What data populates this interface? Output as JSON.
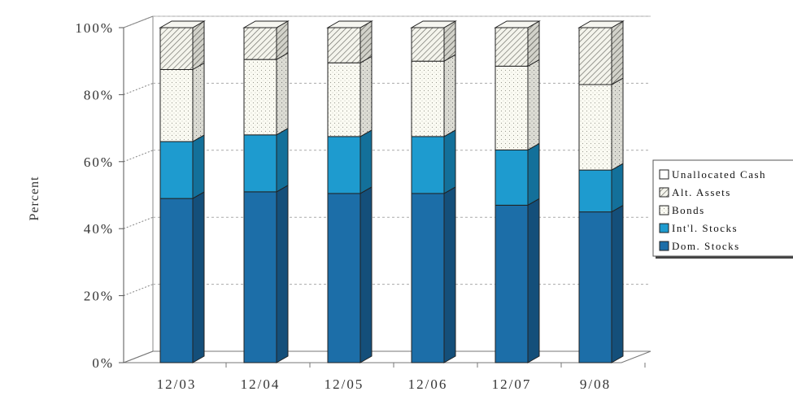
{
  "chart_data": {
    "type": "bar",
    "stacked": true,
    "three_d": true,
    "title": "",
    "xlabel": "",
    "ylabel": "Percent",
    "ylim": [
      0,
      100
    ],
    "y_tick_labels": [
      "0%",
      "20%",
      "40%",
      "60%",
      "80%",
      "100%"
    ],
    "categories": [
      "12/03",
      "12/04",
      "12/05",
      "12/06",
      "12/07",
      "9/08"
    ],
    "series": [
      {
        "name": "Dom. Stocks",
        "values": [
          49,
          51,
          50.5,
          50.5,
          47,
          45
        ]
      },
      {
        "name": "Int'l. Stocks",
        "values": [
          17,
          17,
          17,
          17,
          16.5,
          12.5
        ]
      },
      {
        "name": "Bonds",
        "values": [
          21.5,
          22.5,
          22,
          22.5,
          25,
          25.5
        ]
      },
      {
        "name": "Alt. Assets",
        "values": [
          12.5,
          9.5,
          10.5,
          10,
          11.5,
          17
        ]
      },
      {
        "name": "Unallocated Cash",
        "values": [
          0,
          0,
          0,
          0,
          0,
          0
        ]
      }
    ],
    "legend_order": [
      "Unallocated Cash",
      "Alt. Assets",
      "Bonds",
      "Int'l. Stocks",
      "Dom. Stocks"
    ],
    "legend_position": "right",
    "grid": true,
    "colors": {
      "Dom. Stocks": "#1c6ea8",
      "Int'l. Stocks": "#1e9bcf",
      "Bonds": "#fafaf2",
      "Alt. Assets": "#f2f2ea",
      "Unallocated Cash": "#ffffff"
    }
  }
}
